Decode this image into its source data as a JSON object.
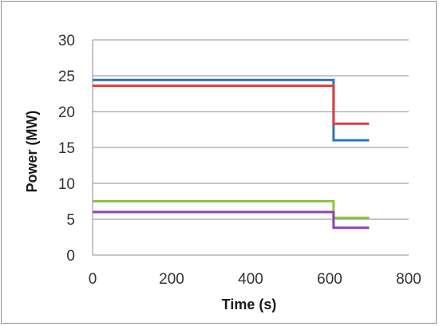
{
  "chart_data": {
    "type": "line",
    "title": "",
    "xlabel": "Time (s)",
    "ylabel": "Power (MW)",
    "xlim": [
      0,
      800
    ],
    "ylim": [
      0,
      30
    ],
    "x_ticks": [
      0,
      200,
      400,
      600,
      800
    ],
    "y_ticks": [
      0,
      5,
      10,
      15,
      20,
      25,
      30
    ],
    "grid": "horizontal",
    "legend": "none",
    "series": [
      {
        "color": "#2e75b6",
        "x": [
          0,
          610,
          610,
          700
        ],
        "y": [
          24.4,
          24.4,
          16.0,
          16.0
        ]
      },
      {
        "color": "#e03c3c",
        "x": [
          0,
          610,
          610,
          700
        ],
        "y": [
          23.6,
          23.6,
          18.3,
          18.3
        ]
      },
      {
        "color": "#8cc63f",
        "x": [
          0,
          610,
          610,
          700
        ],
        "y": [
          7.5,
          7.5,
          5.2,
          5.2
        ]
      },
      {
        "color": "#8e44ad",
        "x": [
          0,
          610,
          610,
          700
        ],
        "y": [
          6.0,
          6.0,
          3.8,
          3.8
        ]
      }
    ]
  }
}
